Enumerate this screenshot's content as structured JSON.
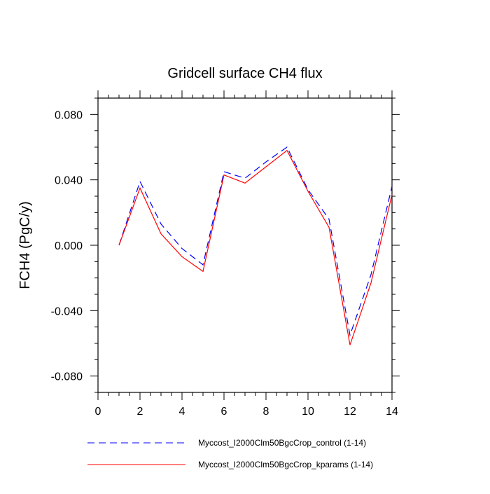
{
  "chart_data": {
    "type": "line",
    "title": "Gridcell surface CH4 flux",
    "xlabel": "",
    "ylabel": "FCH4  (PgC/y)",
    "xlim": [
      0,
      14
    ],
    "ylim": [
      -0.09,
      0.09
    ],
    "x_ticks": [
      0,
      2,
      4,
      6,
      8,
      10,
      12,
      14
    ],
    "x_tick_labels": [
      "0",
      "2",
      "4",
      "6",
      "8",
      "10",
      "12",
      "14"
    ],
    "y_ticks": [
      -0.08,
      -0.04,
      0.0,
      0.04,
      0.08
    ],
    "y_tick_labels": [
      "-0.080",
      "-0.040",
      "0.000",
      "0.040",
      "0.080"
    ],
    "grid": false,
    "legend_position": "bottom",
    "x": [
      1,
      2,
      3,
      4,
      5,
      6,
      7,
      8,
      9,
      10,
      11,
      12,
      13,
      14
    ],
    "series": [
      {
        "name": "Myccost_I2000Clm50BgcCrop_control (1-14)",
        "style": "dashed",
        "color": "#0000ff",
        "values": [
          0.0,
          0.039,
          0.013,
          -0.002,
          -0.012,
          0.045,
          0.041,
          0.051,
          0.06,
          0.034,
          0.016,
          -0.055,
          -0.018,
          0.036
        ]
      },
      {
        "name": "Myccost_I2000Clm50BgcCrop_kparams (1-14)",
        "style": "solid",
        "color": "#ff0000",
        "values": [
          0.0,
          0.035,
          0.007,
          -0.007,
          -0.016,
          0.043,
          0.038,
          0.048,
          0.058,
          0.033,
          0.011,
          -0.061,
          -0.023,
          0.031
        ]
      }
    ]
  }
}
